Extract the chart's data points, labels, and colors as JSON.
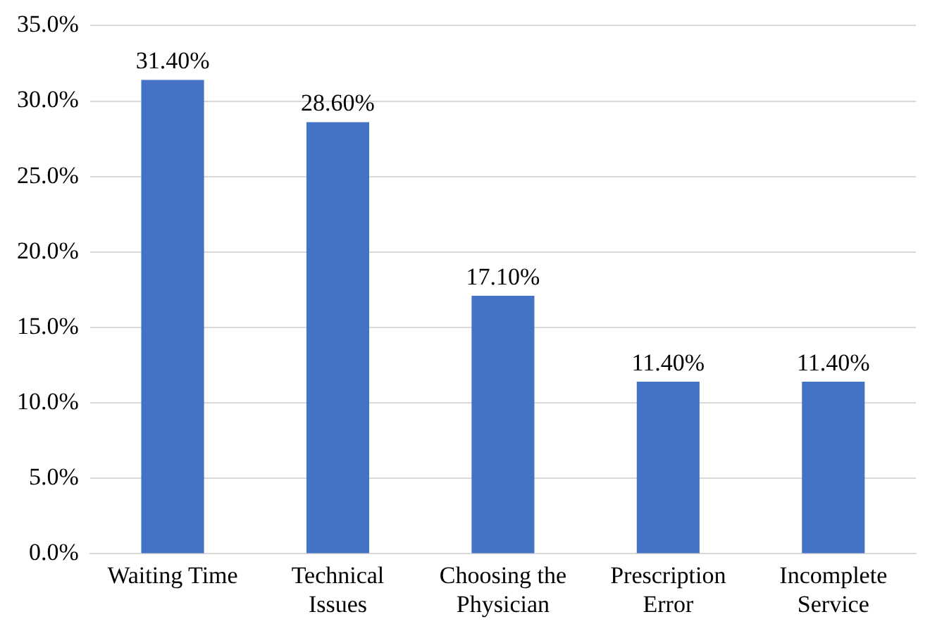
{
  "chart_data": {
    "type": "bar",
    "categories": [
      "Waiting Time",
      "Technical Issues",
      "Choosing the Physician",
      "Prescription Error",
      "Incomplete Service"
    ],
    "values": [
      31.4,
      28.6,
      17.1,
      11.4,
      11.4
    ],
    "value_labels": [
      "31.40%",
      "28.60%",
      "17.10%",
      "11.40%",
      "11.40%"
    ],
    "color": "#4472c4",
    "ylim": [
      0,
      35
    ],
    "yticks": [
      {
        "value": 0,
        "label": "0.0%"
      },
      {
        "value": 5,
        "label": "5.0%"
      },
      {
        "value": 10,
        "label": "10.0%"
      },
      {
        "value": 15,
        "label": "15.0%"
      },
      {
        "value": 20,
        "label": "20.0%"
      },
      {
        "value": 25,
        "label": "25.0%"
      },
      {
        "value": 30,
        "label": "30.0%"
      },
      {
        "value": 35,
        "label": "35.0%"
      }
    ],
    "grid": "y",
    "legend": false
  }
}
